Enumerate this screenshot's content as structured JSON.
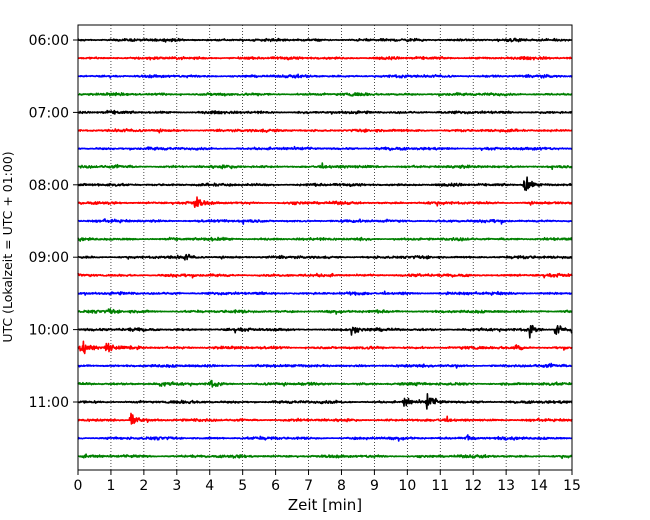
{
  "chart_data": {
    "type": "line",
    "title": "",
    "xlabel": "Zeit  [min]",
    "ylabel": "UTC (Lokalzeit = UTC + 01:00)",
    "xlim": [
      0,
      15
    ],
    "x_ticks": [
      "0",
      "1",
      "2",
      "3",
      "4",
      "5",
      "6",
      "7",
      "8",
      "9",
      "10",
      "11",
      "12",
      "13",
      "14",
      "15"
    ],
    "y_tick_labels": [
      "06:00",
      "07:00",
      "08:00",
      "09:00",
      "10:00",
      "11:00"
    ],
    "trace_start_times": [
      "06:00",
      "06:15",
      "06:30",
      "06:45",
      "07:00",
      "07:15",
      "07:30",
      "07:45",
      "08:00",
      "08:15",
      "08:30",
      "08:45",
      "09:00",
      "09:15",
      "09:30",
      "09:45",
      "10:00",
      "10:15",
      "10:30",
      "10:45",
      "11:00",
      "11:15",
      "11:30",
      "11:45"
    ],
    "trace_colors": [
      "#000000",
      "#ff0000",
      "#0000ff",
      "#008000"
    ],
    "grid": "vertical-dotted",
    "events": [
      {
        "trace": "08:00",
        "minute": 13.55,
        "amplitude": 1.7
      },
      {
        "trace": "08:15",
        "minute": 3.55,
        "amplitude": 0.9
      },
      {
        "trace": "09:00",
        "minute": 3.25,
        "amplitude": 0.4
      },
      {
        "trace": "09:45",
        "minute": 0.95,
        "amplitude": 0.4
      },
      {
        "trace": "10:00",
        "minute": 8.3,
        "amplitude": 0.6
      },
      {
        "trace": "10:00",
        "minute": 13.7,
        "amplitude": 1.0
      },
      {
        "trace": "10:00",
        "minute": 14.5,
        "amplitude": 1.1
      },
      {
        "trace": "10:00",
        "minute": 15.0,
        "amplitude": 0.8
      },
      {
        "trace": "10:15",
        "minute": 0.1,
        "amplitude": 1.3
      },
      {
        "trace": "10:15",
        "minute": 0.85,
        "amplitude": 1.2
      },
      {
        "trace": "10:15",
        "minute": 13.3,
        "amplitude": 0.6
      },
      {
        "trace": "10:45",
        "minute": 2.5,
        "amplitude": 0.5
      },
      {
        "trace": "10:45",
        "minute": 4.0,
        "amplitude": 0.6
      },
      {
        "trace": "11:00",
        "minute": 9.9,
        "amplitude": 1.0
      },
      {
        "trace": "11:00",
        "minute": 10.6,
        "amplitude": 1.3
      },
      {
        "trace": "11:15",
        "minute": 1.6,
        "amplitude": 1.6
      },
      {
        "trace": "11:30",
        "minute": 11.8,
        "amplitude": 0.6
      }
    ]
  }
}
